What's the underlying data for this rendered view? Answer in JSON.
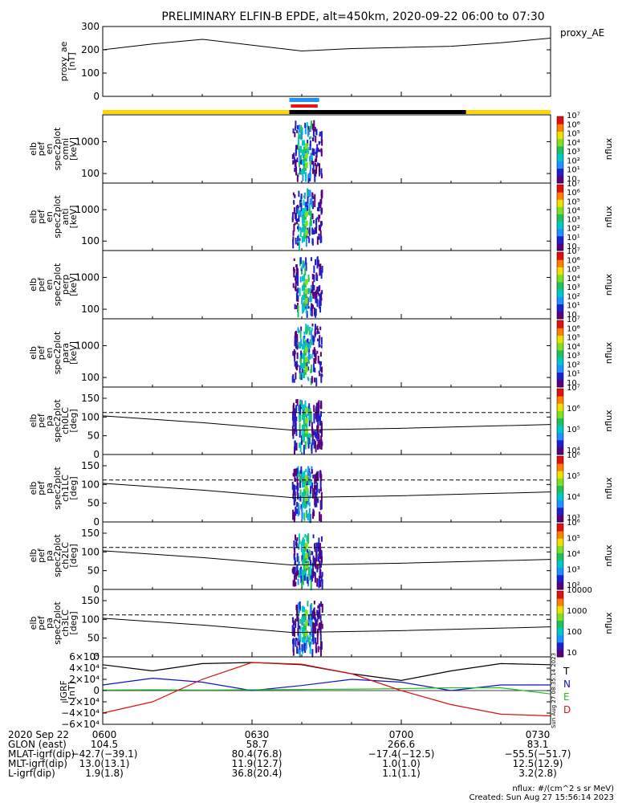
{
  "title": "PRELIMINARY ELFIN-B EPDE, alt=450km, 2020-09-22 06:00 to 07:30",
  "colors": {
    "science_bar": "#ffd700",
    "eclipse_bar": "#000000",
    "ibo_bar_top": "#1e90ff",
    "ibo_bar_bottom": "#ee1111",
    "N": "#1010c8",
    "E": "#20c020",
    "D": "#dd1010",
    "T": "#000000"
  },
  "chart_data": [
    {
      "type": "line",
      "ylabel": "proxy_ae\n[nT]",
      "ylim": [
        0,
        300
      ],
      "yticks": [
        "0",
        "100",
        "200",
        "300"
      ],
      "legend": "proxy_AE",
      "x_minutes": [
        0,
        10,
        20,
        30,
        40,
        50,
        60,
        70,
        80,
        90
      ],
      "values": [
        200,
        225,
        245,
        220,
        195,
        205,
        210,
        215,
        230,
        250
      ]
    },
    {
      "type": "heatmap",
      "ylabel": "elb\npef\nen\nspec2plot\nomni\n[keV]",
      "ylim": [
        50,
        7000
      ],
      "yticks": [
        "100",
        "1000"
      ],
      "colorbar_ticks": [
        "10",
        "10¹",
        "10²",
        "10³",
        "10⁴",
        "10⁵",
        "10⁶",
        "10⁷"
      ],
      "zlabel": "nflux",
      "active_window_minutes": [
        38,
        44
      ]
    },
    {
      "type": "heatmap",
      "ylabel": "elb\npef\nen\nspec2plot\nanti\n[keV]",
      "ylim": [
        50,
        7000
      ],
      "yticks": [
        "100",
        "1000"
      ],
      "colorbar_ticks": [
        "10",
        "10¹",
        "10²",
        "10³",
        "10⁴",
        "10⁵",
        "10⁶",
        "10⁷"
      ],
      "zlabel": "nflux",
      "active_window_minutes": [
        38,
        44
      ]
    },
    {
      "type": "heatmap",
      "ylabel": "elb\npef\nen\nspec2plot\nperp\n[keV]",
      "ylim": [
        50,
        7000
      ],
      "yticks": [
        "100",
        "1000"
      ],
      "colorbar_ticks": [
        "10",
        "10¹",
        "10²",
        "10³",
        "10⁴",
        "10⁵",
        "10⁶",
        "10⁷"
      ],
      "zlabel": "nflux",
      "active_window_minutes": [
        38,
        44
      ]
    },
    {
      "type": "heatmap",
      "ylabel": "elb\npef\nen\nspec2plot\npara\n[keV]",
      "ylim": [
        50,
        7000
      ],
      "yticks": [
        "100",
        "1000"
      ],
      "colorbar_ticks": [
        "10",
        "10¹",
        "10²",
        "10³",
        "10⁴",
        "10⁵",
        "10⁶",
        "10⁷"
      ],
      "zlabel": "nflux",
      "active_window_minutes": [
        38,
        44
      ]
    },
    {
      "type": "heatmap",
      "ylabel": "elb\npef\npa\nspec2plot\nch0LC\n[deg]",
      "ylim": [
        0,
        180
      ],
      "yticks": [
        "0",
        "50",
        "100",
        "150"
      ],
      "colorbar_ticks": [
        "10⁴",
        "10⁵",
        "10⁶",
        "10⁷"
      ],
      "zlabel": "nflux",
      "lc_line": [
        [
          0,
          103
        ],
        [
          20,
          85
        ],
        [
          38,
          65
        ],
        [
          60,
          70
        ],
        [
          90,
          80
        ]
      ],
      "alc_dashed": 112
    },
    {
      "type": "heatmap",
      "ylabel": "elb\npef\npa\nspec2plot\nch1LC\n[deg]",
      "ylim": [
        0,
        180
      ],
      "yticks": [
        "0",
        "50",
        "100",
        "150"
      ],
      "colorbar_ticks": [
        "10³",
        "10⁴",
        "10⁵",
        "10⁶"
      ],
      "zlabel": "nflux",
      "lc_line": [
        [
          0,
          103
        ],
        [
          20,
          85
        ],
        [
          38,
          65
        ],
        [
          60,
          70
        ],
        [
          90,
          80
        ]
      ],
      "alc_dashed": 112
    },
    {
      "type": "heatmap",
      "ylabel": "elb\npef\npa\nspec2plot\nch2LC\n[deg]",
      "ylim": [
        0,
        180
      ],
      "yticks": [
        "0",
        "50",
        "100",
        "150"
      ],
      "colorbar_ticks": [
        "10²",
        "10³",
        "10⁴",
        "10⁵",
        "10⁶"
      ],
      "zlabel": "nflux",
      "lc_line": [
        [
          0,
          103
        ],
        [
          20,
          85
        ],
        [
          38,
          65
        ],
        [
          60,
          70
        ],
        [
          90,
          80
        ]
      ],
      "alc_dashed": 112
    },
    {
      "type": "heatmap",
      "ylabel": "elb\npef\npa\nspec2plot\nch3LC\n[deg]",
      "ylim": [
        0,
        180
      ],
      "yticks": [
        "0",
        "50",
        "100",
        "150"
      ],
      "colorbar_ticks": [
        "10",
        "100",
        "1000",
        "10000"
      ],
      "zlabel": "nflux",
      "lc_line": [
        [
          0,
          103
        ],
        [
          20,
          85
        ],
        [
          38,
          65
        ],
        [
          60,
          70
        ],
        [
          90,
          80
        ]
      ],
      "alc_dashed": 112
    },
    {
      "type": "line",
      "ylabel": "IGRF\n[nT]",
      "ylim": [
        -60000,
        60000
      ],
      "yticks": [
        "−6×10⁴",
        "−4×10⁴",
        "−2×10⁴",
        "0",
        "2×10⁴",
        "4×10⁴",
        "6×10⁴"
      ],
      "side_note": "Sun Aug 27 08:35:14 2023",
      "x_minutes": [
        0,
        10,
        20,
        30,
        40,
        50,
        60,
        70,
        80,
        90
      ],
      "series": [
        {
          "name": "T",
          "values": [
            46000,
            35000,
            48000,
            50000,
            46000,
            30000,
            18000,
            35000,
            48000,
            46000
          ]
        },
        {
          "name": "N",
          "values": [
            10000,
            22000,
            15000,
            0,
            9000,
            20000,
            15000,
            0,
            10000,
            10000
          ]
        },
        {
          "name": "E",
          "values": [
            1000,
            1500,
            1000,
            1500,
            2000,
            2500,
            3500,
            5000,
            5000,
            -6000
          ]
        },
        {
          "name": "D",
          "values": [
            -40000,
            -20000,
            20000,
            50000,
            47000,
            30000,
            0,
            -25000,
            -42000,
            -45000
          ]
        }
      ]
    }
  ],
  "footer": {
    "rows": [
      [
        "2020 Sep 22",
        "0600",
        "0630",
        "0700",
        "0730"
      ],
      [
        "GLON (east)",
        "104.5",
        "58.7",
        "266.6",
        "83.1"
      ],
      [
        "MLAT-igrf(dip)",
        "−42.7(−39.1)",
        "80.4(76.8)",
        "−17.4(−12.5)",
        "−55.5(−51.7)"
      ],
      [
        "MLT-igrf(dip)",
        "13.0(13.1)",
        "11.9(12.7)",
        "1.0(1.0)",
        "12.5(12.9)"
      ],
      [
        "L-igrf(dip)",
        "1.9(1.8)",
        "36.8(20.4)",
        "1.1(1.1)",
        "3.2(2.8)"
      ]
    ],
    "units_note": "nflux: #/(cm^2 s sr MeV)",
    "created": "Created: Sun Aug 27 15:56:14 2023"
  }
}
